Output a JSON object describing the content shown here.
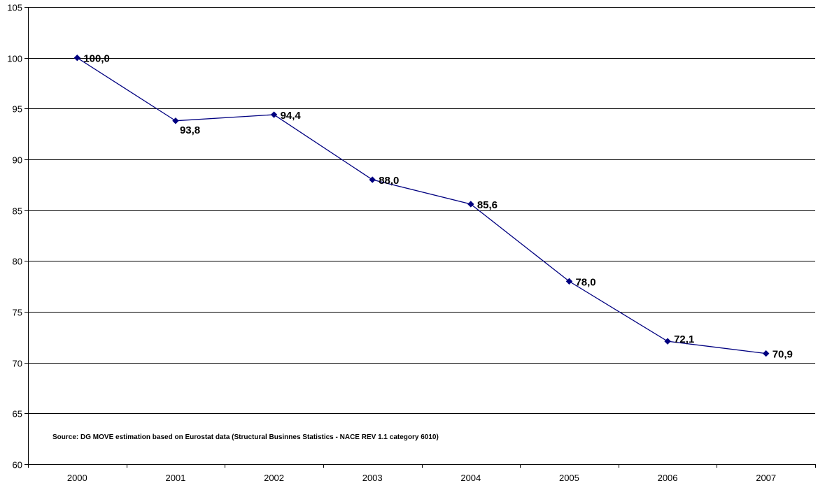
{
  "chart_data": {
    "type": "line",
    "categories": [
      "2000",
      "2001",
      "2002",
      "2003",
      "2004",
      "2005",
      "2006",
      "2007"
    ],
    "values": [
      100.0,
      93.8,
      94.4,
      88.0,
      85.6,
      78.0,
      72.1,
      70.9
    ],
    "data_labels": [
      "100,0",
      "93,8",
      "94,4",
      "88,0",
      "85,6",
      "78,0",
      "72,1",
      "70,9"
    ],
    "ylim": [
      60,
      105
    ],
    "yticks": [
      60,
      65,
      70,
      75,
      80,
      85,
      90,
      95,
      100,
      105
    ],
    "grid": true,
    "line_color": "#000080",
    "marker": "diamond",
    "annotation": "Source: DG MOVE estimation based on Eurostat data (Structural Businnes Statistics - NACE REV 1.1 category 6010)"
  }
}
